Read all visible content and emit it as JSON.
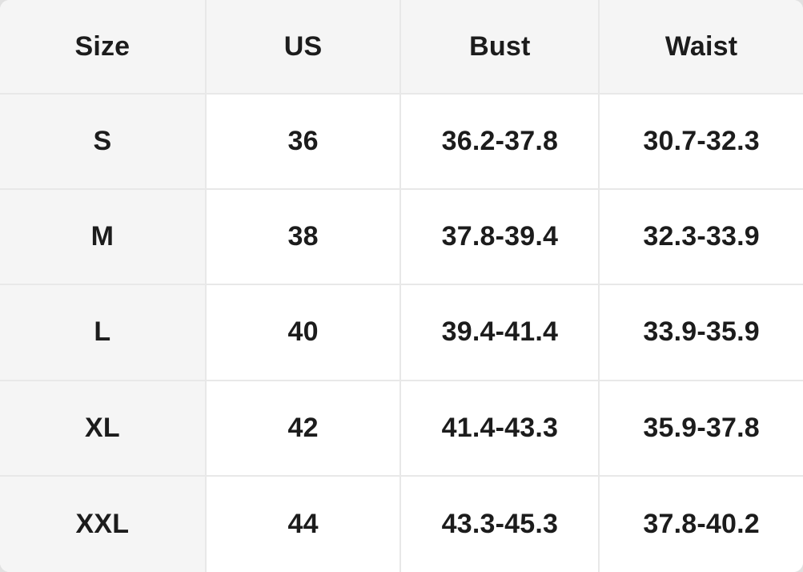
{
  "size_chart": {
    "columns": [
      "Size",
      "US",
      "Bust",
      "Waist"
    ],
    "rows": [
      {
        "size": "S",
        "us": "36",
        "bust": "36.2-37.8",
        "waist": "30.7-32.3"
      },
      {
        "size": "M",
        "us": "38",
        "bust": "37.8-39.4",
        "waist": "32.3-33.9"
      },
      {
        "size": "L",
        "us": "40",
        "bust": "39.4-41.4",
        "waist": "33.9-35.9"
      },
      {
        "size": "XL",
        "us": "42",
        "bust": "41.4-43.3",
        "waist": "35.9-37.8"
      },
      {
        "size": "XXL",
        "us": "44",
        "bust": "43.3-45.3",
        "waist": "37.8-40.2"
      }
    ]
  },
  "colors": {
    "page_bg": "#e1e1e1",
    "panel_bg": "#ffffff",
    "header_bg": "#f5f5f5",
    "border": "#e8e8e8",
    "text": "#1c1c1c"
  }
}
